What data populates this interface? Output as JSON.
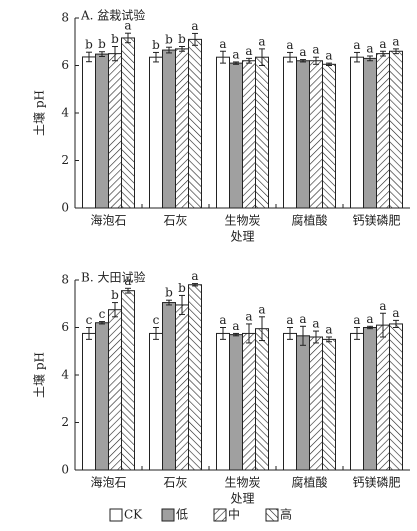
{
  "chart_data": [
    {
      "type": "bar",
      "title": "A. 盆栽试验",
      "y_label": "土壤 pH",
      "x_label": "处理",
      "categories": [
        "海泡石",
        "石灰",
        "生物炭",
        "腐植酸",
        "钙镁磷肥"
      ],
      "ylim": [
        0,
        8
      ],
      "yticks": [
        0,
        2,
        4,
        6,
        8
      ],
      "series": [
        {
          "color": "#ffffff",
          "hatch": "none",
          "values": [
            6.36,
            6.35,
            6.35,
            6.35,
            6.35
          ],
          "errors": [
            0.2,
            0.2,
            0.25,
            0.2,
            0.2
          ],
          "letters": [
            "b",
            "b",
            "a",
            "a",
            "a"
          ]
        },
        {
          "color": "#a0a0a0",
          "hatch": "none",
          "values": [
            6.48,
            6.65,
            6.1,
            6.2,
            6.3
          ],
          "errors": [
            0.1,
            0.12,
            0.05,
            0.05,
            0.1
          ],
          "letters": [
            "b",
            "b",
            "a",
            "a",
            "a"
          ]
        },
        {
          "color": "#ffffff",
          "hatch": "/",
          "values": [
            6.5,
            6.7,
            6.2,
            6.2,
            6.5
          ],
          "errors": [
            0.3,
            0.1,
            0.1,
            0.15,
            0.1
          ],
          "letters": [
            "b",
            "b",
            "a",
            "a",
            "a"
          ]
        },
        {
          "color": "#ffffff",
          "hatch": "\\",
          "values": [
            7.16,
            7.1,
            6.35,
            6.05,
            6.6
          ],
          "errors": [
            0.2,
            0.25,
            0.35,
            0.05,
            0.1
          ],
          "letters": [
            "a",
            "a",
            "a",
            "a",
            "a"
          ]
        }
      ]
    },
    {
      "type": "bar",
      "title": "B. 大田试验",
      "y_label": "土壤 pH",
      "x_label": "处理",
      "categories": [
        "海泡石",
        "石灰",
        "生物炭",
        "腐植酸",
        "钙镁磷肥"
      ],
      "ylim": [
        0,
        8
      ],
      "yticks": [
        0,
        2,
        4,
        6,
        8
      ],
      "series": [
        {
          "name": "CK",
          "color": "#ffffff",
          "hatch": "none",
          "values": [
            5.75,
            5.75,
            5.75,
            5.75,
            5.75
          ],
          "errors": [
            0.25,
            0.25,
            0.25,
            0.25,
            0.25
          ],
          "letters": [
            "c",
            "c",
            "a",
            "a",
            "a"
          ]
        },
        {
          "name": "低",
          "color": "#a0a0a0",
          "hatch": "none",
          "values": [
            6.2,
            7.05,
            5.7,
            5.65,
            6.0
          ],
          "errors": [
            0.05,
            0.1,
            0.05,
            0.4,
            0.05
          ],
          "letters": [
            "c",
            "b",
            "a",
            "a",
            "a"
          ]
        },
        {
          "name": "中",
          "color": "#ffffff",
          "hatch": "/",
          "values": [
            6.75,
            6.95,
            5.75,
            5.6,
            6.1
          ],
          "errors": [
            0.3,
            0.4,
            0.4,
            0.25,
            0.5
          ],
          "letters": [
            "b",
            "b",
            "a",
            "a",
            "a"
          ]
        },
        {
          "name": "高",
          "color": "#ffffff",
          "hatch": "\\",
          "values": [
            7.55,
            7.8,
            5.95,
            5.5,
            6.15
          ],
          "errors": [
            0.1,
            0.05,
            0.5,
            0.1,
            0.15
          ],
          "letters": [
            "a",
            "a",
            "a",
            "a",
            "a"
          ]
        }
      ]
    }
  ]
}
